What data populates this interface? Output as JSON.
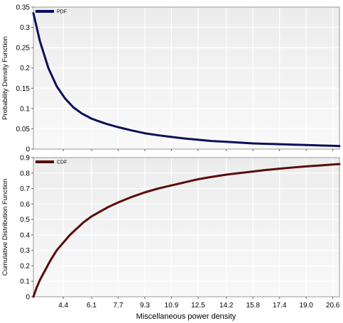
{
  "chart_data": [
    {
      "type": "line",
      "ylabel": "Probability Density Function",
      "xlabel": "",
      "ylim": [
        0,
        0.35
      ],
      "yticks": [
        "0",
        "0.05",
        "0.1",
        "0.15",
        "0.2",
        "0.25",
        "0.3",
        "0.35"
      ],
      "grid": true,
      "legend": "top-left",
      "color": "#0a0f5a",
      "series": [
        {
          "name": "PDF",
          "x": [
            2.6,
            3.0,
            3.5,
            4.0,
            4.5,
            5.0,
            5.5,
            6.1,
            6.5,
            7.0,
            7.7,
            8.5,
            9.3,
            10.1,
            10.9,
            11.7,
            12.5,
            13.3,
            14.2,
            15.0,
            15.8,
            16.6,
            17.4,
            18.2,
            19.0,
            19.8,
            20.6,
            21.0
          ],
          "y": [
            0.335,
            0.265,
            0.2,
            0.155,
            0.125,
            0.103,
            0.088,
            0.075,
            0.069,
            0.062,
            0.054,
            0.046,
            0.039,
            0.034,
            0.03,
            0.026,
            0.023,
            0.02,
            0.018,
            0.016,
            0.014,
            0.013,
            0.012,
            0.011,
            0.01,
            0.009,
            0.008,
            0.0075
          ]
        }
      ]
    },
    {
      "type": "line",
      "ylabel": "Cumulative Distribution Function",
      "xlabel": "Miscellaneous power density",
      "ylim": [
        0,
        0.9
      ],
      "yticks": [
        "0",
        "0.1",
        "0.2",
        "0.3",
        "0.4",
        "0.5",
        "0.6",
        "0.7",
        "0.8",
        "0.9"
      ],
      "xticks": [
        "4.4",
        "6.1",
        "7.7",
        "9.3",
        "10.9",
        "12.5",
        "14.2",
        "15.8",
        "17.4",
        "19.0",
        "20.6"
      ],
      "grid": true,
      "legend": "top-left",
      "color": "#5a0a0a",
      "series": [
        {
          "name": "CDF",
          "x": [
            2.6,
            2.8,
            3.0,
            3.3,
            3.6,
            4.0,
            4.4,
            4.8,
            5.2,
            5.6,
            6.1,
            6.6,
            7.1,
            7.7,
            8.5,
            9.3,
            10.1,
            10.9,
            11.7,
            12.5,
            13.3,
            14.2,
            15.0,
            15.8,
            16.6,
            17.4,
            18.2,
            19.0,
            19.8,
            20.6,
            21.0
          ],
          "y": [
            0.0,
            0.06,
            0.11,
            0.17,
            0.23,
            0.3,
            0.35,
            0.4,
            0.44,
            0.48,
            0.52,
            0.55,
            0.58,
            0.61,
            0.645,
            0.675,
            0.7,
            0.72,
            0.74,
            0.76,
            0.775,
            0.79,
            0.8,
            0.81,
            0.82,
            0.828,
            0.836,
            0.843,
            0.849,
            0.855,
            0.858
          ]
        }
      ]
    }
  ]
}
